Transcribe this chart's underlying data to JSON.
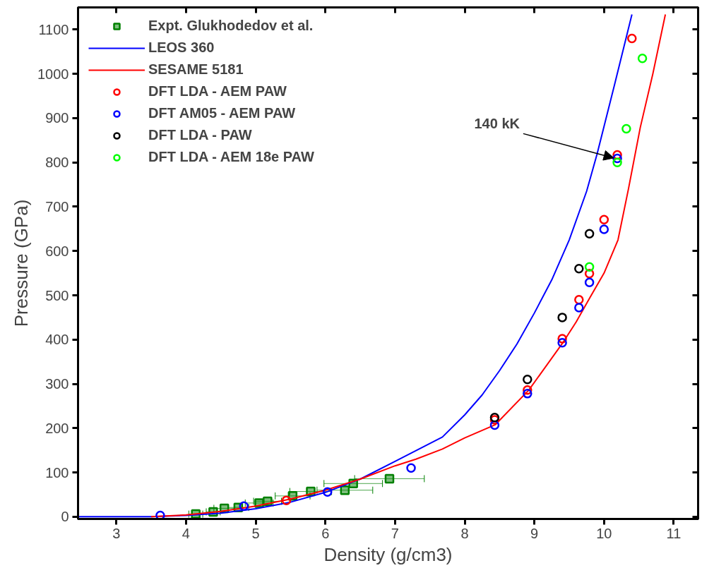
{
  "chart_data": {
    "type": "scatter",
    "xlabel": "Density (g/cm3)",
    "ylabel": "Pressure (GPa)",
    "xlim": [
      2.45,
      11.35
    ],
    "ylim": [
      -5,
      1150
    ],
    "xticks": [
      3,
      4,
      5,
      6,
      7,
      8,
      9,
      10,
      11
    ],
    "yticks": [
      0,
      100,
      200,
      300,
      400,
      500,
      600,
      700,
      800,
      900,
      1000,
      1100
    ],
    "grid": false,
    "legend": "top left",
    "annotations": [
      {
        "text": "140 kK",
        "x": 10.19,
        "y": 810
      }
    ],
    "series": [
      {
        "name": "Expt. Glukhodedov et al.",
        "marker": "square",
        "color": "#008000",
        "x": [
          4.14,
          4.39,
          4.55,
          4.75,
          5.05,
          5.17,
          5.53,
          5.79,
          6.28,
          6.4,
          6.92
        ],
        "values": [
          6,
          11,
          19,
          21,
          31,
          35,
          47,
          57,
          60,
          75,
          86
        ],
        "xerrors": [
          0.1,
          0.1,
          0.15,
          0.15,
          0.2,
          0.2,
          0.25,
          0.3,
          0.4,
          0.42,
          0.5
        ]
      },
      {
        "name": "LEOS 360",
        "type": "line",
        "marker": "none",
        "color": "#0000ff",
        "x": [
          2.45,
          3.5,
          4,
          4.5,
          5,
          5.5,
          6,
          6.5,
          7,
          7.68,
          8,
          8.25,
          8.5,
          8.75,
          9,
          9.25,
          9.5,
          9.75,
          9.9,
          10.15,
          10.4
        ],
        "values": [
          0,
          0,
          3,
          8,
          18,
          33,
          55,
          85,
          125,
          180,
          230,
          275,
          330,
          390,
          460,
          535,
          625,
          735,
          819,
          975,
          1134
        ]
      },
      {
        "name": "SESAME 5181",
        "type": "line",
        "marker": "none",
        "color": "#ff0000",
        "x": [
          3.5,
          4,
          4.5,
          5,
          5.5,
          6,
          6.5,
          7,
          7.3,
          7.68,
          8.0,
          8.44,
          8.92,
          9.4,
          9.6,
          9.79,
          10.0,
          10.2,
          10.35,
          10.52,
          10.7,
          10.88
        ],
        "values": [
          0,
          4,
          12,
          24,
          40,
          60,
          85,
          115,
          130,
          153,
          178,
          208,
          286,
          391,
          440,
          493,
          550,
          625,
          740,
          879,
          1000,
          1134
        ]
      },
      {
        "name": "DFT LDA - AEM PAW",
        "marker": "circle",
        "color": "#ff0000",
        "x": [
          5.44,
          8.43,
          8.9,
          9.4,
          9.64,
          9.79,
          10.0,
          10.19,
          10.4
        ],
        "values": [
          37,
          219,
          286,
          402,
          490,
          549,
          671,
          817,
          1080
        ]
      },
      {
        "name": "DFT AM05 - AEM PAW",
        "marker": "circle",
        "color": "#0000ff",
        "x": [
          3.63,
          4.83,
          6.03,
          7.23,
          8.43,
          8.9,
          9.4,
          9.64,
          9.79,
          10.0,
          10.19
        ],
        "values": [
          3,
          24,
          56,
          110,
          207,
          278,
          393,
          472,
          529,
          649,
          809
        ]
      },
      {
        "name": "DFT LDA - PAW",
        "marker": "circle",
        "color": "#000000",
        "x": [
          8.43,
          8.9,
          9.4,
          9.64,
          9.79
        ],
        "values": [
          224,
          310,
          450,
          560,
          639
        ]
      },
      {
        "name": "DFT LDA - AEM 18e PAW",
        "marker": "circle",
        "color": "#00ff00",
        "x": [
          9.79,
          10.19,
          10.32,
          10.55
        ],
        "values": [
          564,
          800,
          876,
          1035
        ]
      }
    ]
  }
}
